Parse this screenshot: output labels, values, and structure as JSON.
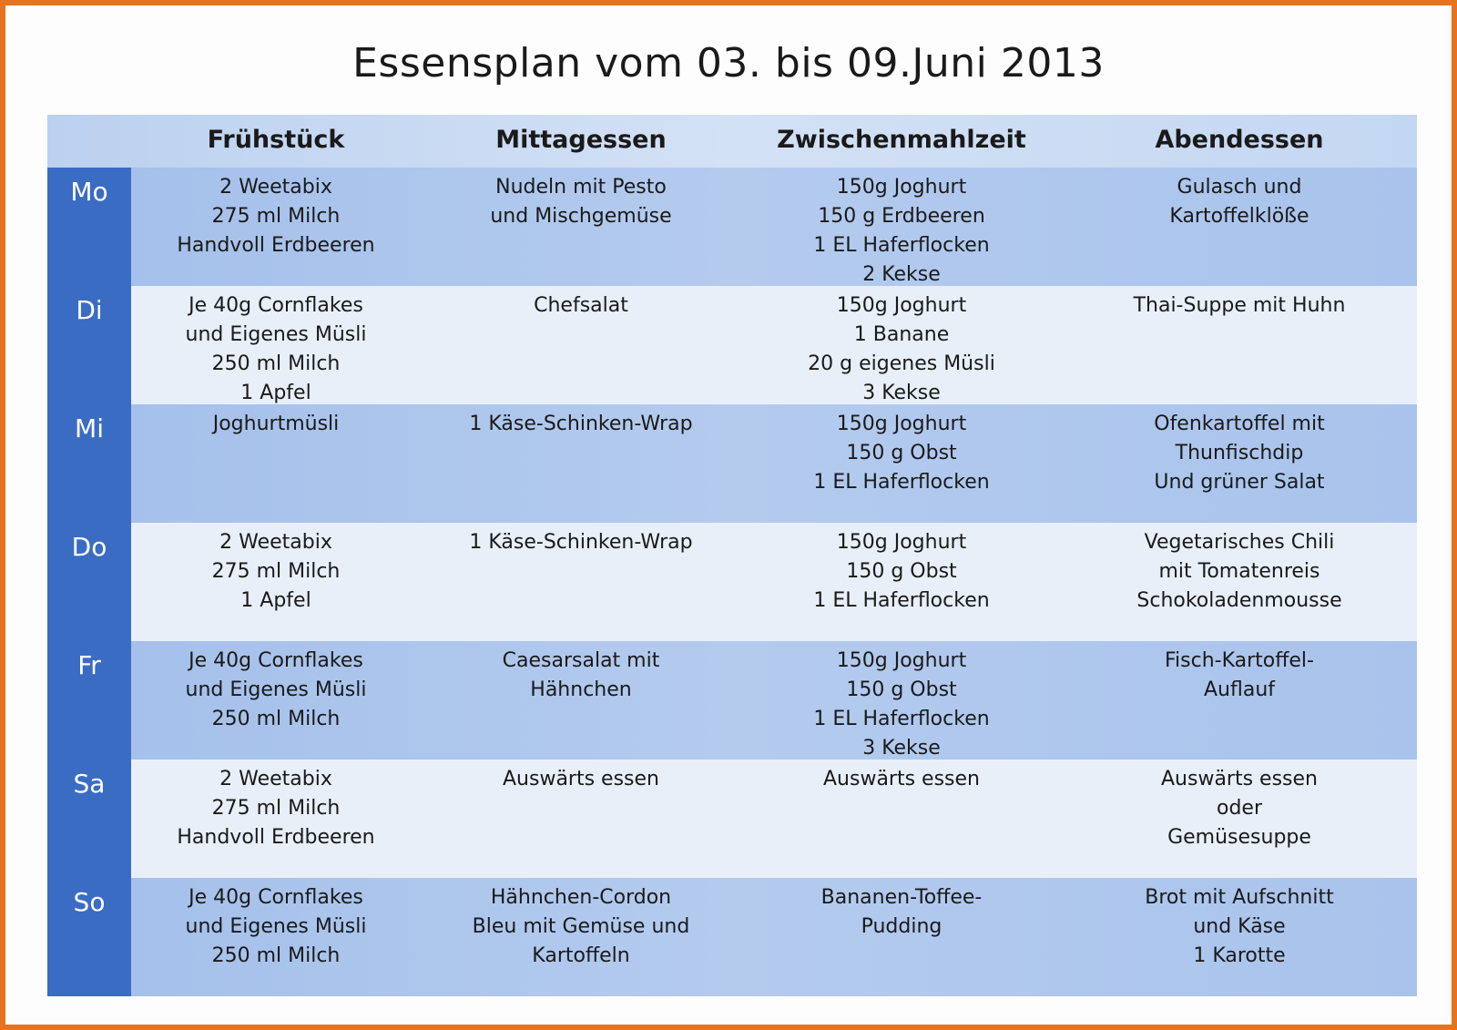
{
  "title": "Essensplan vom 03. bis 09.Juni 2013",
  "table": {
    "header": [
      "Frühstück",
      "Mittagessen",
      "Zwischenmahlzeit",
      "Abendessen"
    ],
    "rows": [
      {
        "day": "Mo",
        "cells": [
          [
            "2 Weetabix",
            "275 ml Milch",
            "Handvoll Erdbeeren"
          ],
          [
            "Nudeln mit Pesto",
            "und Mischgemüse"
          ],
          [
            "150g Joghurt",
            "150 g Erdbeeren",
            "1 EL Haferflocken",
            "2 Kekse"
          ],
          [
            "Gulasch und",
            "Kartoffelklöße"
          ]
        ]
      },
      {
        "day": "Di",
        "cells": [
          [
            "Je 40g Cornflakes",
            "und Eigenes Müsli",
            "250 ml Milch",
            "1 Apfel"
          ],
          [
            "Chefsalat"
          ],
          [
            "150g Joghurt",
            "1 Banane",
            "20 g eigenes Müsli",
            "3 Kekse"
          ],
          [
            "Thai-Suppe mit Huhn"
          ]
        ]
      },
      {
        "day": "Mi",
        "cells": [
          [
            "Joghurtmüsli"
          ],
          [
            "1 Käse-Schinken-Wrap"
          ],
          [
            "150g Joghurt",
            "150 g Obst",
            "1 EL Haferflocken"
          ],
          [
            "Ofenkartoffel mit",
            "Thunfischdip",
            "Und grüner Salat"
          ]
        ]
      },
      {
        "day": "Do",
        "cells": [
          [
            "2 Weetabix",
            "275 ml Milch",
            "1 Apfel"
          ],
          [
            "1 Käse-Schinken-Wrap"
          ],
          [
            "150g Joghurt",
            "150 g Obst",
            "1 EL Haferflocken"
          ],
          [
            "Vegetarisches Chili",
            "mit Tomatenreis",
            "Schokoladenmousse"
          ]
        ]
      },
      {
        "day": "Fr",
        "cells": [
          [
            "Je 40g Cornflakes",
            "und Eigenes Müsli",
            "250 ml Milch"
          ],
          [
            "Caesarsalat mit",
            "Hähnchen"
          ],
          [
            "150g Joghurt",
            "150 g Obst",
            "1 EL Haferflocken",
            "3 Kekse"
          ],
          [
            "Fisch-Kartoffel-",
            "Auflauf"
          ]
        ]
      },
      {
        "day": "Sa",
        "cells": [
          [
            "2 Weetabix",
            "275 ml Milch",
            "Handvoll Erdbeeren"
          ],
          [
            "Auswärts essen"
          ],
          [
            "Auswärts essen"
          ],
          [
            "Auswärts essen",
            "oder",
            "Gemüsesuppe"
          ]
        ]
      },
      {
        "day": "So",
        "cells": [
          [
            "Je 40g Cornflakes",
            "und Eigenes Müsli",
            "250 ml Milch"
          ],
          [
            "Hähnchen-Cordon",
            "Bleu mit Gemüse und",
            "Kartoffeln"
          ],
          [
            "Bananen-Toffee-",
            "Pudding"
          ],
          [
            "Brot mit Aufschnitt",
            "und Käse",
            "1 Karotte"
          ]
        ]
      }
    ]
  }
}
